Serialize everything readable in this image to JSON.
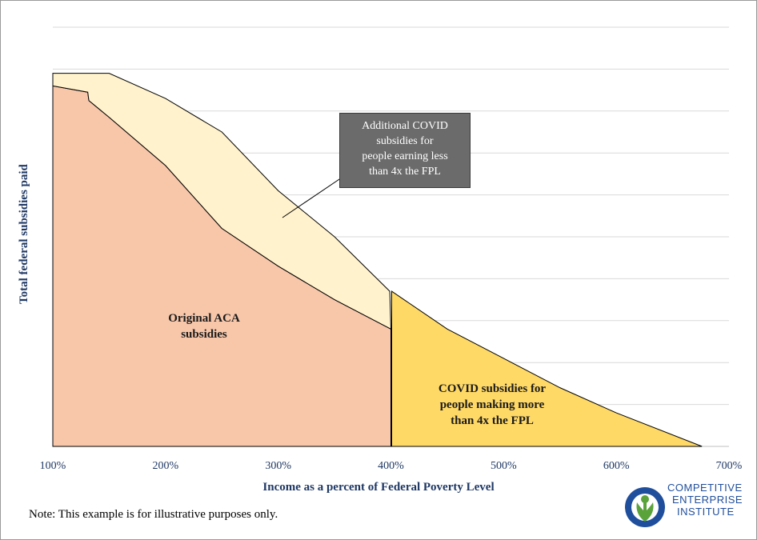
{
  "chart_data": {
    "type": "area",
    "title": "",
    "xlabel": "Income as a percent of Federal Poverty Level",
    "ylabel": "Total federal subsidies paid",
    "xlim": [
      100,
      700
    ],
    "ylim": [
      0,
      100
    ],
    "x_ticks": [
      "100%",
      "200%",
      "300%",
      "400%",
      "500%",
      "600%",
      "700%"
    ],
    "y_gridlines": 11,
    "series": [
      {
        "name": "Original ACA subsidies",
        "color": "#f8c7aa",
        "points": [
          [
            100,
            86
          ],
          [
            131,
            84.5
          ],
          [
            132,
            82.5
          ],
          [
            150,
            78.5
          ],
          [
            200,
            67
          ],
          [
            250,
            52
          ],
          [
            300,
            43
          ],
          [
            350,
            35
          ],
          [
            400,
            28
          ]
        ]
      },
      {
        "name": "Additional COVID subsidies for people earning less than 4x the FPL",
        "color": "#fff2cc",
        "points": [
          [
            100,
            89
          ],
          [
            150,
            89
          ],
          [
            200,
            83
          ],
          [
            250,
            75
          ],
          [
            300,
            61
          ],
          [
            350,
            50
          ],
          [
            399,
            37
          ]
        ]
      },
      {
        "name": "COVID subsidies for people making more than 4x the FPL",
        "color": "#ffd966",
        "points": [
          [
            400,
            37
          ],
          [
            450,
            28
          ],
          [
            500,
            21
          ],
          [
            550,
            14
          ],
          [
            600,
            8
          ],
          [
            676,
            0
          ]
        ]
      }
    ],
    "annotations": {
      "covid_lower": "Additional COVID subsidies for people earning less than 4x the FPL",
      "aca_label": "Original ACA subsidies",
      "covid_upper": "COVID subsidies for people making more than 4x the FPL"
    }
  },
  "note": "Note: This example is for illustrative purposes only.",
  "logo": {
    "line1": "COMPETITIVE",
    "line2": "ENTERPRISE",
    "line3": "INSTITUTE",
    "colors": {
      "blue": "#1f4e9c",
      "green": "#5aa23a"
    }
  },
  "callout_lines": [
    "Additional COVID",
    "subsidies for",
    "people earning less",
    "than 4x the FPL"
  ],
  "aca_lines": [
    "Original ACA",
    "subsidies"
  ],
  "upper_lines": [
    "COVID subsidies for",
    "people making more",
    "than 4x the FPL"
  ]
}
